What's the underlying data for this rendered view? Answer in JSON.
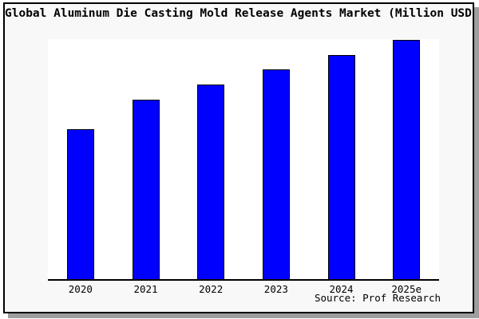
{
  "page": {
    "source": "Source: Prof Research"
  },
  "colors": {
    "bar_fill": "#0000ff",
    "bar_border": "#000000",
    "card_background": "#f8f8f8",
    "plot_background": "#ffffff",
    "frame_border": "#000000",
    "shadow": "#9e9e9e",
    "page_background": "#ffffff",
    "text": "#000000"
  },
  "chart_data": {
    "type": "bar",
    "title": "Global Aluminum Die Casting Mold Release Agents Market (Million USD)",
    "categories": [
      "2020",
      "2021",
      "2022",
      "2023",
      "2024",
      "2025e"
    ],
    "values": [
      188,
      225,
      244,
      263,
      281,
      300
    ],
    "value_note": "relative units measured from bar heights; no y-axis scale shown in chart",
    "xlabel": "",
    "ylabel": "",
    "ylim": [
      0,
      301
    ],
    "grid": false,
    "legend": false,
    "y_axis_labels_visible": false,
    "annotations": [
      "Source: Prof Research"
    ]
  }
}
